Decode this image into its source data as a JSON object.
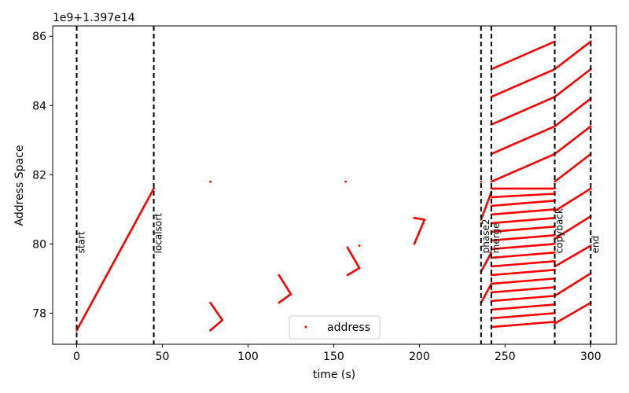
{
  "chart_data": {
    "type": "scatter",
    "offset_label": "1e9+1.397e14",
    "xlabel": "time (s)",
    "ylabel": "Address Space",
    "xlim": [
      -14,
      315
    ],
    "ylim": [
      77.1,
      86.3
    ],
    "xticks": [
      0,
      50,
      100,
      150,
      200,
      250,
      300
    ],
    "yticks": [
      78,
      80,
      82,
      84,
      86
    ],
    "grid": false,
    "legend": {
      "position": "bottom-center",
      "label": "address"
    },
    "marker_color": "#ff0000",
    "markers": [
      {
        "x": 0,
        "label": "start"
      },
      {
        "x": 45,
        "label": "localsort"
      },
      {
        "x": 236,
        "label": "phase2"
      },
      {
        "x": 242,
        "label": "merge"
      },
      {
        "x": 279,
        "label": "copyback"
      },
      {
        "x": 300,
        "label": "end"
      }
    ],
    "series": [
      {
        "name": "address",
        "segments": [
          [
            [
              0,
              77.5
            ],
            [
              45,
              81.6
            ]
          ],
          [
            [
              78,
              78.3
            ],
            [
              85,
              77.8
            ]
          ],
          [
            [
              78,
              77.5
            ],
            [
              85,
              77.8
            ]
          ],
          [
            [
              118,
              79.1
            ],
            [
              125,
              78.55
            ]
          ],
          [
            [
              118,
              78.3
            ],
            [
              125,
              78.55
            ]
          ],
          [
            [
              158,
              79.9
            ],
            [
              165,
              79.3
            ]
          ],
          [
            [
              158,
              79.1
            ],
            [
              165,
              79.3
            ]
          ],
          [
            [
              197,
              80.75
            ],
            [
              203,
              80.7
            ]
          ],
          [
            [
              197,
              80.0
            ],
            [
              203,
              80.7
            ]
          ],
          [
            [
              236,
              79.2
            ],
            [
              242,
              79.75
            ]
          ],
          [
            [
              236,
              78.3
            ],
            [
              242,
              78.85
            ]
          ],
          [
            [
              236,
              80.7
            ],
            [
              242,
              81.5
            ]
          ],
          [
            [
              242,
              85.05
            ],
            [
              279,
              85.85
            ]
          ],
          [
            [
              242,
              84.25
            ],
            [
              279,
              85.05
            ]
          ],
          [
            [
              242,
              83.45
            ],
            [
              279,
              84.25
            ]
          ],
          [
            [
              242,
              82.6
            ],
            [
              279,
              83.4
            ]
          ],
          [
            [
              242,
              81.8
            ],
            [
              279,
              82.6
            ]
          ],
          [
            [
              242,
              81.6
            ],
            [
              279,
              81.6
            ]
          ],
          [
            [
              242,
              81.35
            ],
            [
              279,
              81.45
            ]
          ],
          [
            [
              242,
              81.1
            ],
            [
              279,
              81.25
            ]
          ],
          [
            [
              242,
              80.85
            ],
            [
              279,
              81.0
            ]
          ],
          [
            [
              242,
              80.6
            ],
            [
              279,
              80.75
            ]
          ],
          [
            [
              242,
              80.35
            ],
            [
              279,
              80.5
            ]
          ],
          [
            [
              242,
              80.1
            ],
            [
              279,
              80.25
            ]
          ],
          [
            [
              242,
              79.85
            ],
            [
              279,
              80.0
            ]
          ],
          [
            [
              242,
              79.6
            ],
            [
              279,
              79.75
            ]
          ],
          [
            [
              242,
              79.35
            ],
            [
              279,
              79.5
            ]
          ],
          [
            [
              242,
              79.1
            ],
            [
              279,
              79.25
            ]
          ],
          [
            [
              242,
              78.85
            ],
            [
              279,
              79.0
            ]
          ],
          [
            [
              242,
              78.6
            ],
            [
              279,
              78.75
            ]
          ],
          [
            [
              242,
              78.35
            ],
            [
              279,
              78.5
            ]
          ],
          [
            [
              242,
              78.1
            ],
            [
              279,
              78.25
            ]
          ],
          [
            [
              242,
              77.85
            ],
            [
              279,
              78.0
            ]
          ],
          [
            [
              242,
              77.6
            ],
            [
              279,
              77.75
            ]
          ],
          [
            [
              279,
              85.05
            ],
            [
              300,
              85.85
            ]
          ],
          [
            [
              279,
              84.25
            ],
            [
              300,
              85.05
            ]
          ],
          [
            [
              279,
              83.4
            ],
            [
              300,
              84.2
            ]
          ],
          [
            [
              279,
              82.6
            ],
            [
              300,
              83.4
            ]
          ],
          [
            [
              279,
              81.8
            ],
            [
              300,
              82.6
            ]
          ],
          [
            [
              279,
              80.95
            ],
            [
              300,
              81.6
            ]
          ],
          [
            [
              279,
              80.15
            ],
            [
              300,
              80.8
            ]
          ],
          [
            [
              279,
              79.35
            ],
            [
              300,
              79.95
            ]
          ],
          [
            [
              279,
              78.5
            ],
            [
              300,
              79.15
            ]
          ],
          [
            [
              279,
              77.7
            ],
            [
              300,
              78.3
            ]
          ]
        ],
        "points": [
          [
            78,
            81.8
          ],
          [
            157,
            81.8
          ],
          [
            165,
            79.95
          ],
          [
            236,
            81.8
          ]
        ]
      }
    ]
  }
}
